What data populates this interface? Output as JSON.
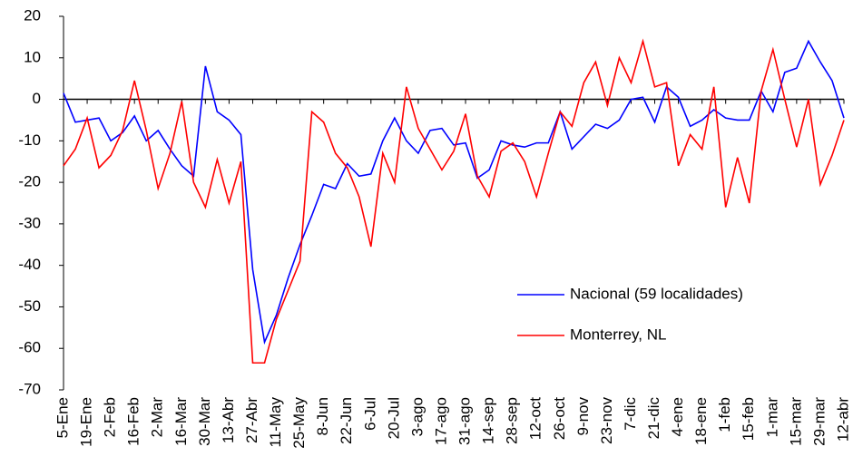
{
  "chart_data": {
    "type": "line",
    "categories": [
      "5-Ene",
      null,
      "19-Ene",
      null,
      "2-Feb",
      null,
      "16-Feb",
      null,
      "2-Mar",
      null,
      "16-Mar",
      null,
      "30-Mar",
      null,
      "13-Abr",
      null,
      "27-Abr",
      null,
      "11-May",
      null,
      "25-May",
      null,
      "8-Jun",
      null,
      "22-Jun",
      null,
      "6-Jul",
      null,
      "20-Jul",
      null,
      "3-ago",
      null,
      "17-ago",
      null,
      "31-ago",
      null,
      "14-sep",
      null,
      "28-sep",
      null,
      "12-oct",
      null,
      "26-oct",
      null,
      "9-nov",
      null,
      "23-nov",
      null,
      "7-dic",
      null,
      "21-dic",
      null,
      "4-ene",
      null,
      "18-ene",
      null,
      "1-feb",
      null,
      "15-feb",
      null,
      "1-mar",
      null,
      "15-mar",
      null,
      "29-mar",
      null,
      "12-abr"
    ],
    "series": [
      {
        "name": "Nacional (59 localidades)",
        "color": "#0000ff",
        "values": [
          1.5,
          -5.5,
          -5,
          -4.5,
          -10,
          -8,
          -4,
          -10,
          -7.5,
          -12,
          -16,
          -18.5,
          8,
          -3,
          -5,
          -8.5,
          -41,
          -58.5,
          -52,
          -43,
          -35,
          -28,
          -20.5,
          -21.5,
          -15.5,
          -18.5,
          -18,
          -10,
          -4.5,
          -10,
          -13,
          -7.5,
          -7,
          -11,
          -10.5,
          -19,
          -17,
          -10,
          -11,
          -11.5,
          -10.5,
          -10.5,
          -3,
          -12,
          -9,
          -6,
          -7,
          -5,
          0,
          0.5,
          -5.5,
          3,
          0.5,
          -6.5,
          -5,
          -2.5,
          -4.5,
          -5,
          -5,
          2,
          -3,
          6.5,
          7.5,
          14,
          9,
          4.5,
          -4.5
        ]
      },
      {
        "name": "Monterrey, NL",
        "color": "#ff0000",
        "values": [
          -16,
          -12,
          -4.5,
          -16.5,
          -13.5,
          -7.5,
          4.5,
          -7.5,
          -21.5,
          -13,
          -0.5,
          -20,
          -26,
          -14.5,
          -25,
          -15,
          -63.5,
          -63.5,
          -53,
          -46,
          -39,
          -3,
          -5.5,
          -13,
          -16.5,
          -23.5,
          -35.5,
          -13,
          -20,
          3,
          -7,
          -12,
          -17,
          -12.5,
          -3.5,
          -18.5,
          -23.5,
          -12.5,
          -10.5,
          -15,
          -23.5,
          -13,
          -3,
          -6.5,
          4,
          9,
          -1.5,
          10,
          4,
          14,
          3,
          4,
          -16,
          -8.5,
          -12,
          3,
          -26,
          -14,
          -25,
          2,
          12,
          0,
          -11.5,
          0,
          -20.5,
          -13.5,
          -5
        ]
      }
    ],
    "ylim": [
      -70,
      20
    ],
    "yticks": [
      -70,
      -60,
      -50,
      -40,
      -30,
      -20,
      -10,
      0,
      10,
      20
    ],
    "grid": false,
    "legend": "right"
  }
}
